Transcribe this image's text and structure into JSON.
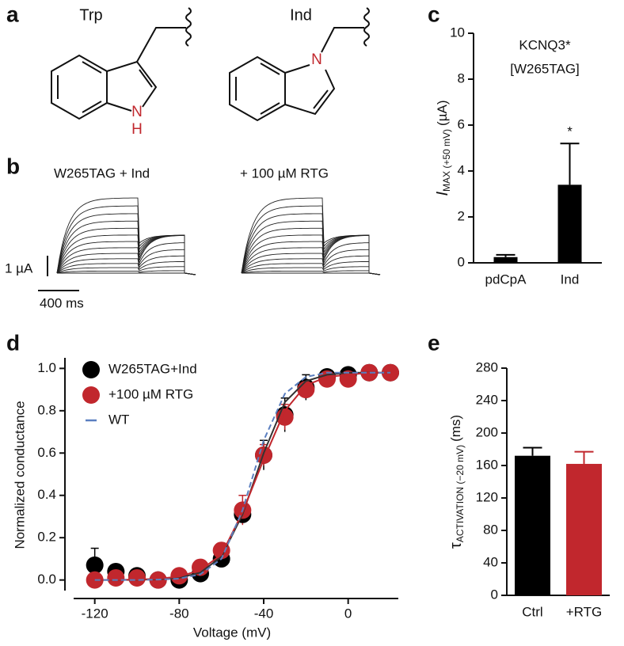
{
  "panel_labels": [
    "a",
    "b",
    "c",
    "d",
    "e"
  ],
  "structures": [
    {
      "name": "Trp",
      "atom": "N",
      "hydrogen": "H"
    },
    {
      "name": "Ind",
      "atom": "N"
    }
  ],
  "traces": {
    "labels": [
      "W265TAG + Ind",
      "+ 100 µM RTG"
    ],
    "scale_current": "1 µA",
    "scale_time": "400 ms"
  },
  "chart_data": [
    {
      "type": "bar",
      "title": [
        "KCNQ3*",
        "[W265TAG]"
      ],
      "ylabel": {
        "text": "I",
        "sub": "MAX (+50 mV)",
        "unit": "(µA)"
      },
      "categories": [
        "pdCpA",
        "Ind"
      ],
      "values": [
        0.25,
        3.4
      ],
      "errors": [
        0.1,
        1.8
      ],
      "significance": [
        null,
        "*"
      ],
      "colors": [
        "#000000",
        "#000000"
      ],
      "ylim": [
        0,
        10
      ],
      "yticks": [
        0,
        2,
        4,
        6,
        8,
        10
      ]
    },
    {
      "type": "scatter",
      "xlabel": "Voltage (mV)",
      "ylabel": "Normalized conductance",
      "x": [
        -120,
        -110,
        -100,
        -90,
        -80,
        -70,
        -60,
        -50,
        -40,
        -30,
        -20,
        -10,
        0,
        10,
        20
      ],
      "series": [
        {
          "name": "W265TAG+Ind",
          "color": "#000000",
          "values": [
            0.07,
            0.04,
            0.02,
            0.0,
            0.0,
            0.03,
            0.1,
            0.31,
            0.59,
            0.78,
            0.91,
            0.96,
            0.97,
            0.98,
            0.98
          ],
          "errors": [
            0.08,
            0.03,
            0.02,
            0.01,
            0.01,
            0.01,
            0.02,
            0.04,
            0.07,
            0.08,
            0.06,
            0.03,
            0.03,
            0.02,
            0.01
          ],
          "fit": [
            0.0,
            0.0,
            0.001,
            0.003,
            0.011,
            0.035,
            0.11,
            0.31,
            0.6,
            0.84,
            0.94,
            0.97,
            0.98,
            0.98,
            0.98
          ]
        },
        {
          "name": "+100 µM RTG",
          "color": "#c1272d",
          "values": [
            0.0,
            0.01,
            0.01,
            0.0,
            0.02,
            0.06,
            0.14,
            0.33,
            0.59,
            0.77,
            0.9,
            0.95,
            0.95,
            0.98,
            0.98
          ],
          "errors": [
            0.01,
            0.01,
            0.01,
            0.01,
            0.01,
            0.02,
            0.02,
            0.07,
            0.05,
            0.06,
            0.03,
            0.04,
            0.04,
            0.01,
            0.01
          ],
          "fit": [
            0.0,
            0.001,
            0.002,
            0.006,
            0.016,
            0.047,
            0.12,
            0.32,
            0.57,
            0.8,
            0.92,
            0.96,
            0.97,
            0.98,
            0.98
          ]
        },
        {
          "name": "WT",
          "color": "#5b7fc0",
          "dashed": true,
          "values": [
            0.0,
            0.0,
            0.0,
            0.002,
            0.006,
            0.027,
            0.1,
            0.33,
            0.66,
            0.88,
            0.96,
            0.98,
            0.98,
            0.98,
            0.98
          ]
        }
      ],
      "xlim": [
        -130,
        20
      ],
      "xticks": [
        -120,
        -80,
        -40,
        0
      ],
      "ylim": [
        -0.05,
        1.05
      ],
      "yticks": [
        {
          "value": 0,
          "label": "0.0"
        },
        0.2,
        0.4,
        0.6,
        0.8,
        {
          "value": 1,
          "label": "1.0"
        }
      ],
      "legend": "top-left"
    },
    {
      "type": "bar",
      "ylabel": {
        "text": "τ",
        "sub": "ACTIVATION (−20 mV)",
        "unit": "(ms)"
      },
      "categories": [
        "Ctrl",
        "+RTG"
      ],
      "values": [
        172,
        162
      ],
      "errors": [
        10,
        15
      ],
      "colors": [
        "#000000",
        "#c1272d"
      ],
      "ylim": [
        0,
        280
      ],
      "yticks": [
        0,
        40,
        80,
        120,
        160,
        200,
        240,
        280
      ]
    }
  ]
}
